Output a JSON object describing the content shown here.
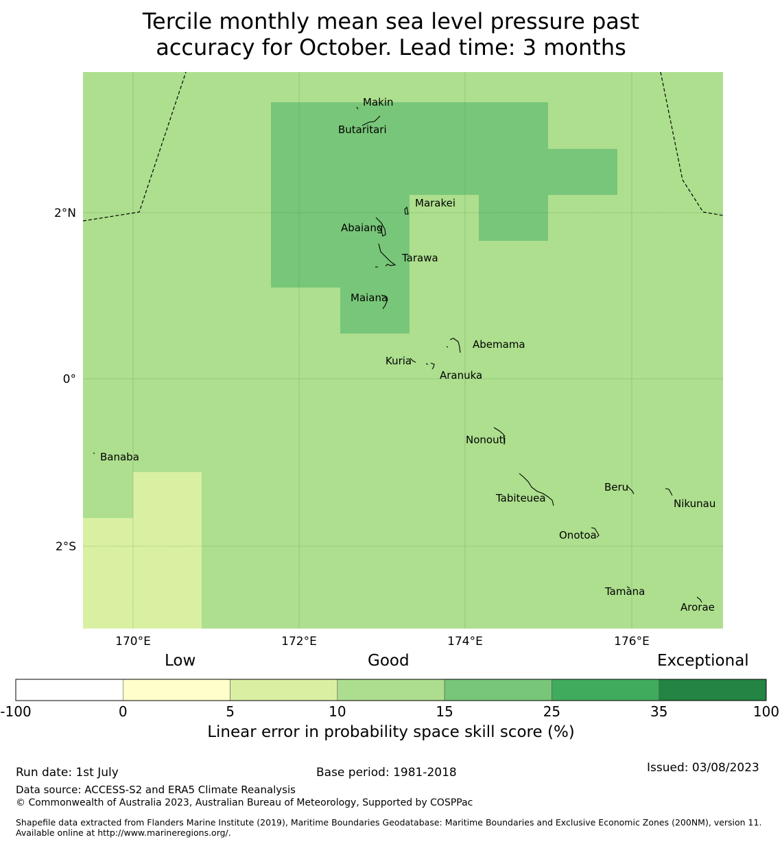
{
  "title": {
    "line1": "Tercile monthly mean sea level pressure past",
    "line2": "accuracy for October. Lead time: 3 months"
  },
  "map": {
    "x_ticks": [
      "170°E",
      "172°E",
      "174°E",
      "176°E"
    ],
    "y_ticks": [
      "2°N",
      "0°",
      "2°S"
    ],
    "places": [
      "Makin",
      "Butaritari",
      "Marakei",
      "Abaiang",
      "Tarawa",
      "Maiana",
      "Abemama",
      "Kuria",
      "Aranuka",
      "Nonouti",
      "Banaba",
      "Beru",
      "Tabiteuea",
      "Nikunau",
      "Onotoa",
      "Tamana",
      "Arorae"
    ],
    "colors": {
      "background": "#addf8e",
      "high_region": "#78c679",
      "low_region": "#d9f0a3",
      "boundary": "#000000"
    }
  },
  "colorbar": {
    "category_labels": [
      "Low",
      "Good",
      "Exceptional"
    ],
    "tick_labels": [
      "-100",
      "0",
      "5",
      "10",
      "15",
      "25",
      "35",
      "100"
    ],
    "colors": [
      "#ffffff",
      "#ffffcc",
      "#d9f0a3",
      "#addd8e",
      "#78c679",
      "#41ab5d",
      "#238443"
    ],
    "label": "Linear error in probability space skill score (%)"
  },
  "footer": {
    "run_date": "Run date: 1st July",
    "base_period": "Base period: 1981-2018",
    "issued": "Issued: 03/08/2023",
    "data_source": "Data source: ACCESS-S2 and ERA5 Climate Reanalysis",
    "copyright": "© Commonwealth of Australia 2023, Australian Bureau of Meteorology, Supported by COSPPac",
    "shapefile": "Shapefile data extracted from Flanders Marine Institute (2019), Maritime Boundaries Geodatabase: Maritime Boundaries and Exclusive Economic Zones (200NM), version 11. Available online at http://www.marineregions.org/."
  }
}
